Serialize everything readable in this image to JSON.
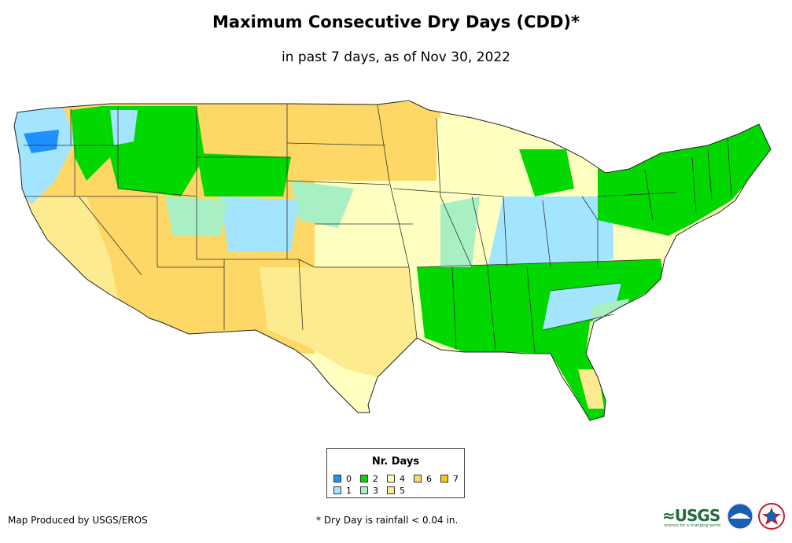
{
  "title": "Maximum Consecutive Dry Days (CDD)*",
  "subtitle": "in past 7 days, as of Nov 30, 2022",
  "legend": {
    "title": "Nr. Days",
    "items": [
      {
        "label": "0",
        "color": "#1e90ff"
      },
      {
        "label": "1",
        "color": "#a3e4ff"
      },
      {
        "label": "2",
        "color": "#00d800"
      },
      {
        "label": "3",
        "color": "#a8f0c4"
      },
      {
        "label": "4",
        "color": "#ffffc0"
      },
      {
        "label": "5",
        "color": "#fdeb90"
      },
      {
        "label": "6",
        "color": "#fdd866"
      },
      {
        "label": "7",
        "color": "#fdc800"
      }
    ]
  },
  "credit": "Map Produced by USGS/EROS",
  "footnote": "* Dry Day is rainfall < 0.04 in.",
  "logos": {
    "usgs": "≈USGS",
    "usgs_tagline": "science for a changing world"
  }
}
